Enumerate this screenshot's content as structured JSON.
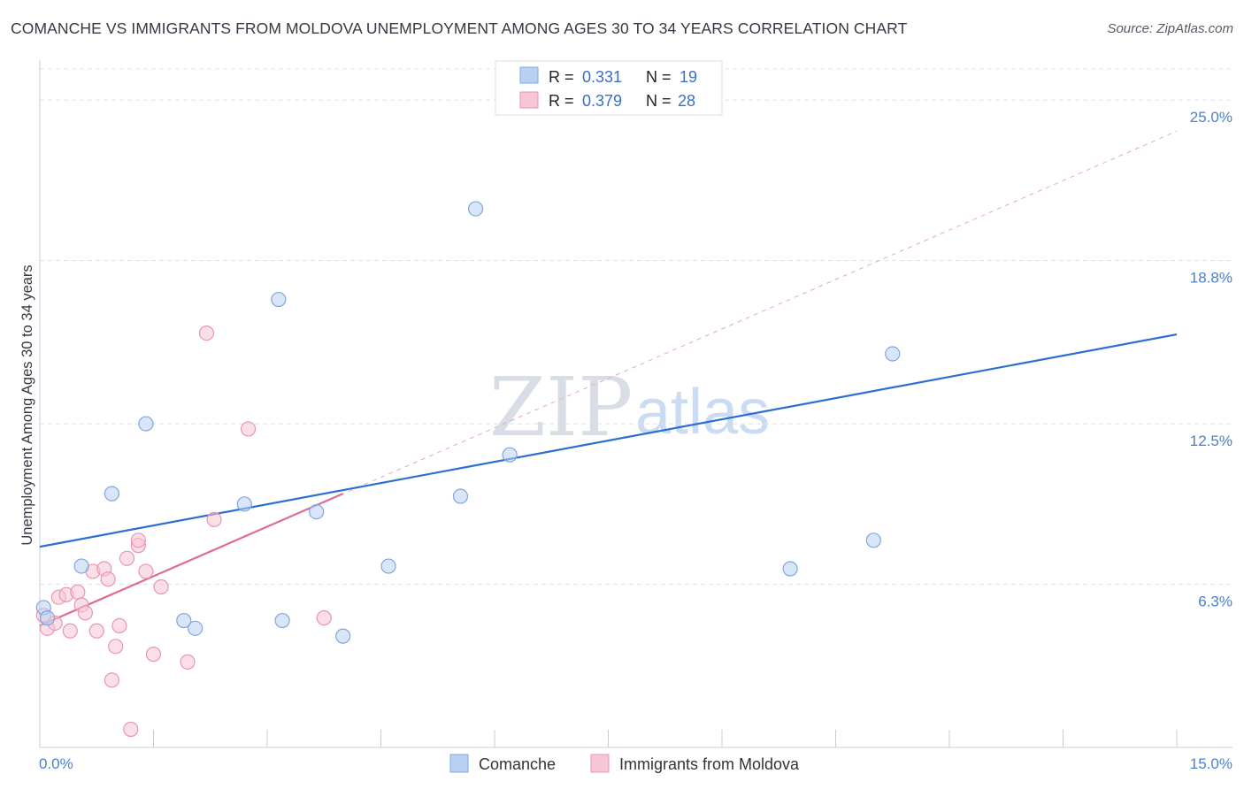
{
  "header": {
    "title": "COMANCHE VS IMMIGRANTS FROM MOLDOVA UNEMPLOYMENT AMONG AGES 30 TO 34 YEARS CORRELATION CHART",
    "source": "Source: ZipAtlas.com"
  },
  "watermark": {
    "zip": "ZIP",
    "atlas": "atlas"
  },
  "colors": {
    "comanche_fill": "#b8d1f3",
    "comanche_stroke": "#7fa7df",
    "comanche_line": "#2a6fd1",
    "moldova_fill": "#f7c5d3",
    "moldova_stroke": "#e896b0",
    "moldova_line": "#e0699a",
    "grid": "#dde1e8",
    "axis_label": "#4a7fd0"
  },
  "legend": {
    "rows": [
      {
        "r_label": "R =",
        "r_value": "0.331",
        "n_label": "N =",
        "n_value": "19"
      },
      {
        "r_label": "R =",
        "r_value": "0.379",
        "n_label": "N =",
        "n_value": "28"
      }
    ]
  },
  "bottom_legend": {
    "comanche": "Comanche",
    "moldova": "Immigrants from Moldova"
  },
  "chart_data": {
    "type": "scatter",
    "title": "COMANCHE VS IMMIGRANTS FROM MOLDOVA UNEMPLOYMENT AMONG AGES 30 TO 34 YEARS CORRELATION CHART",
    "xlabel": "",
    "ylabel": "Unemployment Among Ages 30 to 34 years",
    "xlim": [
      0,
      15
    ],
    "ylim": [
      0,
      26.2
    ],
    "x_tick_labels": [
      "0.0%",
      "15.0%"
    ],
    "y_ticks": [
      6.3,
      12.5,
      18.8,
      25.0
    ],
    "y_tick_labels": [
      "6.3%",
      "12.5%",
      "18.8%",
      "25.0%"
    ],
    "series": [
      {
        "name": "Comanche",
        "points": [
          [
            0.05,
            5.4
          ],
          [
            0.55,
            7.0
          ],
          [
            0.95,
            9.8
          ],
          [
            1.4,
            12.5
          ],
          [
            1.9,
            4.9
          ],
          [
            2.05,
            4.6
          ],
          [
            2.7,
            9.4
          ],
          [
            3.15,
            17.3
          ],
          [
            3.2,
            4.9
          ],
          [
            3.65,
            9.1
          ],
          [
            4.0,
            4.3
          ],
          [
            4.6,
            7.0
          ],
          [
            5.55,
            9.7
          ],
          [
            5.75,
            20.8
          ],
          [
            6.2,
            11.3
          ],
          [
            9.9,
            6.9
          ],
          [
            11.0,
            8.0
          ],
          [
            11.25,
            15.2
          ],
          [
            0.1,
            5.0
          ]
        ],
        "trend": {
          "x": [
            0,
            15
          ],
          "y": [
            7.75,
            15.95
          ]
        }
      },
      {
        "name": "Immigrants from Moldova",
        "points": [
          [
            0.05,
            5.1
          ],
          [
            0.1,
            4.6
          ],
          [
            0.2,
            4.8
          ],
          [
            0.25,
            5.8
          ],
          [
            0.35,
            5.9
          ],
          [
            0.4,
            4.5
          ],
          [
            0.5,
            6.0
          ],
          [
            0.55,
            5.5
          ],
          [
            0.6,
            5.2
          ],
          [
            0.7,
            6.8
          ],
          [
            0.75,
            4.5
          ],
          [
            0.85,
            6.9
          ],
          [
            0.9,
            6.5
          ],
          [
            0.95,
            2.6
          ],
          [
            1.0,
            3.9
          ],
          [
            1.05,
            4.7
          ],
          [
            1.15,
            7.3
          ],
          [
            1.2,
            0.7
          ],
          [
            1.3,
            7.8
          ],
          [
            1.3,
            8.0
          ],
          [
            1.4,
            6.8
          ],
          [
            1.5,
            3.6
          ],
          [
            1.6,
            6.2
          ],
          [
            1.95,
            3.3
          ],
          [
            2.2,
            16.0
          ],
          [
            2.3,
            8.8
          ],
          [
            2.75,
            12.3
          ],
          [
            3.75,
            5.0
          ]
        ],
        "trend": {
          "x": [
            0,
            4.0
          ],
          "y": [
            4.7,
            9.8
          ]
        },
        "trend_extended": {
          "x": [
            0,
            15
          ],
          "y": [
            4.7,
            23.8
          ]
        }
      }
    ],
    "legend": [
      {
        "name": "Comanche",
        "R": 0.331,
        "N": 19
      },
      {
        "name": "Immigrants from Moldova",
        "R": 0.379,
        "N": 28
      }
    ]
  }
}
